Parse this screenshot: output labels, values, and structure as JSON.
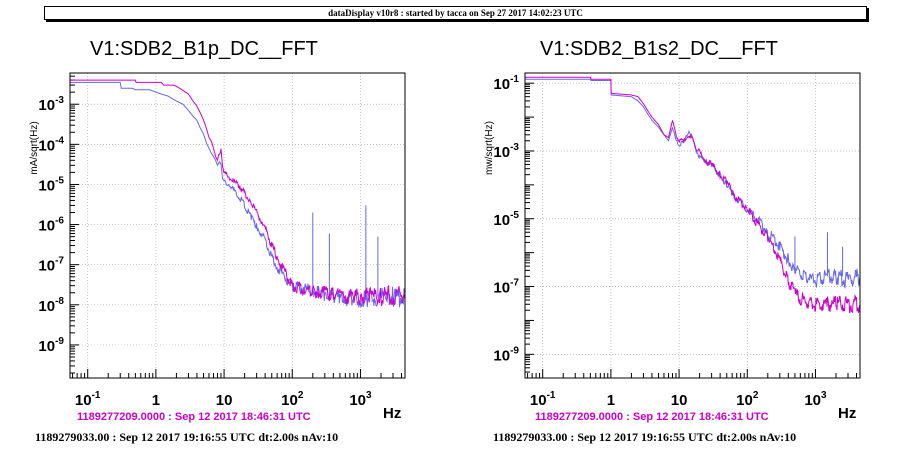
{
  "header": {
    "title": "dataDisplay v10r8 : started by tacca on Sep 27 2017 14:02:23 UTC"
  },
  "colors": {
    "reference": "#6666ee",
    "current": "#cc00cc",
    "timestamp_ref": "#cc00cc",
    "axis": "#000000"
  },
  "chart_data": [
    {
      "type": "line",
      "title": "V1:SDB2_B1p_DC__FFT",
      "ylabel": "mA/sqrt(Hz)",
      "xlabel": "Hz",
      "xscale": "log",
      "yscale": "log",
      "xlim": [
        0.055,
        4500
      ],
      "ylim": [
        1.5e-10,
        0.006
      ],
      "grid": true,
      "x_ticks": [
        {
          "b": "10",
          "e": "-1"
        },
        {
          "b": "1",
          "e": ""
        },
        {
          "b": "10",
          "e": ""
        },
        {
          "b": "10",
          "e": "2"
        },
        {
          "b": "10",
          "e": "3"
        }
      ],
      "y_ticks": [
        {
          "b": "10",
          "e": "-9"
        },
        {
          "b": "10",
          "e": "-8"
        },
        {
          "b": "10",
          "e": "-7"
        },
        {
          "b": "10",
          "e": "-6"
        },
        {
          "b": "10",
          "e": "-5"
        },
        {
          "b": "10",
          "e": "-4"
        },
        {
          "b": "10",
          "e": "-3"
        }
      ],
      "series": [
        {
          "role": "reference",
          "color": "#6666ee",
          "x": [
            0.055,
            0.3,
            0.31,
            0.45,
            0.5,
            0.8,
            1.0,
            1.2,
            1.5,
            2,
            2.5,
            3,
            3.5,
            4,
            4.5,
            5,
            5.5,
            6,
            6.5,
            7,
            7.5,
            8,
            8.5,
            9,
            9.5,
            10,
            12,
            14,
            16,
            18,
            20,
            25,
            30,
            35,
            40,
            45,
            50,
            60,
            70,
            80,
            90,
            100,
            150,
            200,
            250,
            300,
            400,
            500,
            600,
            800,
            1000,
            1300,
            1600,
            2000,
            2500,
            3000,
            3500,
            4000,
            4500
          ],
          "y": [
            0.0035,
            0.0035,
            0.0025,
            0.0025,
            0.0023,
            0.0023,
            0.002,
            0.0018,
            0.0016,
            0.0012,
            0.001,
            0.0007,
            0.0005,
            0.0004,
            0.00025,
            0.00018,
            0.00011,
            8e-05,
            6e-05,
            5e-05,
            4e-05,
            3e-05,
            4e-05,
            3e-05,
            1.5e-05,
            1.2e-05,
            1e-05,
            7e-06,
            5e-06,
            4e-06,
            3e-06,
            1.5e-06,
            9e-07,
            6e-07,
            4e-07,
            2.5e-07,
            1.5e-07,
            9e-08,
            6e-08,
            4.5e-08,
            3.5e-08,
            3e-08,
            2.5e-08,
            2.2e-08,
            2e-08,
            1.8e-08,
            1.6e-08,
            1.5e-08,
            1.5e-08,
            1.4e-08,
            1.3e-08,
            1.4e-08,
            1.5e-08,
            1.6e-08,
            1.7e-08,
            1.6e-08,
            1.5e-08,
            1.6e-08,
            1.7e-08
          ],
          "spikes": [
            [
              200,
              2e-06
            ],
            [
              350,
              6e-07
            ],
            [
              1200,
              3e-06
            ],
            [
              1800,
              5e-07
            ]
          ]
        },
        {
          "role": "current",
          "color": "#cc00cc",
          "x": [
            0.055,
            0.5,
            0.51,
            1.2,
            1.3,
            1.8,
            2,
            2.5,
            3,
            3.5,
            4,
            4.5,
            5,
            5.5,
            6,
            6.5,
            7,
            7.5,
            8,
            8.5,
            9,
            9.5,
            10,
            12,
            14,
            16,
            18,
            20,
            25,
            30,
            35,
            40,
            45,
            50,
            60,
            70,
            80,
            90,
            100,
            150,
            200,
            250,
            300,
            400,
            500,
            600,
            800,
            1000,
            1300,
            1600,
            2000,
            2500,
            3000,
            3500,
            4000,
            4500
          ],
          "y": [
            0.004,
            0.004,
            0.0035,
            0.0035,
            0.003,
            0.003,
            0.0028,
            0.0022,
            0.0018,
            0.0012,
            0.0009,
            0.0006,
            0.0004,
            0.00025,
            0.00015,
            0.00012,
            8e-05,
            5e-05,
            4e-05,
            6e-05,
            7e-05,
            3e-05,
            2e-05,
            1.5e-05,
            1.2e-05,
            1e-05,
            8e-06,
            6e-06,
            3.5e-06,
            2e-06,
            1.3e-06,
            8e-07,
            5e-07,
            3e-07,
            1.5e-07,
            9e-08,
            6e-08,
            4e-08,
            3e-08,
            2.4e-08,
            2.2e-08,
            2.1e-08,
            2e-08,
            1.9e-08,
            1.8e-08,
            1.7e-08,
            1.6e-08,
            1.6e-08,
            1.6e-08,
            1.6e-08,
            1.6e-08,
            1.7e-08,
            1.7e-08,
            1.8e-08,
            1.8e-08,
            1.8e-08
          ]
        }
      ],
      "timestamp_ref": "1189277209.0000 : Sep 12 2017 18:46:31 UTC",
      "timestamp_cur": "1189279033.00 : Sep 12 2017 19:16:55 UTC dt:2.00s nAv:10"
    },
    {
      "type": "line",
      "title": "V1:SDB2_B1s2_DC__FFT",
      "ylabel": "mw/sqrt(Hz)",
      "xlabel": "Hz",
      "xscale": "log",
      "yscale": "log",
      "xlim": [
        0.055,
        4500
      ],
      "ylim": [
        2e-10,
        0.2
      ],
      "grid": true,
      "x_ticks": [
        {
          "b": "10",
          "e": "-1"
        },
        {
          "b": "1",
          "e": ""
        },
        {
          "b": "10",
          "e": ""
        },
        {
          "b": "10",
          "e": "2"
        },
        {
          "b": "10",
          "e": "3"
        }
      ],
      "y_ticks": [
        {
          "b": "10",
          "e": "-9"
        },
        {
          "b": "10",
          "e": "-7"
        },
        {
          "b": "10",
          "e": "-5"
        },
        {
          "b": "10",
          "e": "-3"
        },
        {
          "b": "10",
          "e": "-1"
        }
      ],
      "series": [
        {
          "role": "reference",
          "color": "#6666ee",
          "x": [
            0.055,
            0.5,
            0.51,
            1.0,
            1.01,
            2,
            2.5,
            3,
            3.5,
            4,
            5,
            6,
            7,
            8,
            9,
            10,
            12,
            14,
            16,
            18,
            20,
            25,
            30,
            40,
            50,
            60,
            70,
            80,
            100,
            150,
            200,
            300,
            400,
            500,
            700,
            1000,
            1500,
            2000,
            3000,
            4500
          ],
          "y": [
            0.13,
            0.13,
            0.12,
            0.12,
            0.045,
            0.04,
            0.03,
            0.02,
            0.012,
            0.008,
            0.005,
            0.003,
            0.002,
            0.005,
            0.002,
            0.0015,
            0.002,
            0.004,
            0.002,
            0.001,
            0.0007,
            0.0005,
            0.0004,
            0.0002,
            0.0001,
            6e-05,
            4e-05,
            3e-05,
            2e-05,
            8e-06,
            4e-06,
            1.5e-06,
            6e-07,
            3e-07,
            2e-07,
            1.5e-07,
            2e-07,
            2e-07,
            1.5e-07,
            2e-07
          ],
          "spikes": [
            [
              500,
              3e-06
            ],
            [
              1500,
              4e-06
            ],
            [
              2500,
              1.5e-06
            ]
          ]
        },
        {
          "role": "current",
          "color": "#cc00cc",
          "x": [
            0.055,
            0.5,
            0.51,
            1.0,
            1.01,
            2,
            2.5,
            3,
            3.5,
            4,
            5,
            6,
            7,
            8,
            9,
            10,
            12,
            14,
            16,
            18,
            20,
            25,
            30,
            40,
            50,
            60,
            70,
            80,
            100,
            150,
            200,
            300,
            400,
            500,
            700,
            1000,
            1500,
            2000,
            3000,
            4500
          ],
          "y": [
            0.15,
            0.15,
            0.13,
            0.13,
            0.05,
            0.045,
            0.04,
            0.025,
            0.015,
            0.01,
            0.006,
            0.003,
            0.0025,
            0.008,
            0.003,
            0.002,
            0.002,
            0.003,
            0.002,
            0.0012,
            0.0009,
            0.0005,
            0.0004,
            0.0002,
            0.00012,
            7e-05,
            4e-05,
            3e-05,
            2e-05,
            6e-06,
            3e-06,
            6e-07,
            1.5e-07,
            6e-08,
            3.5e-08,
            3e-08,
            3e-08,
            3e-08,
            3e-08,
            3e-08
          ]
        }
      ],
      "timestamp_ref": "1189277209.0000 : Sep 12 2017 18:46:31 UTC",
      "timestamp_cur": "1189279033.00 : Sep 12 2017 19:16:55 UTC dt:2.00s nAv:10"
    }
  ]
}
